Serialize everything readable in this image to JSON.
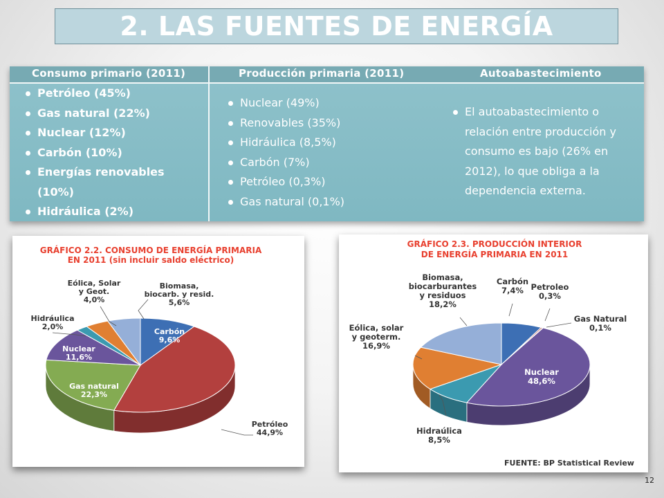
{
  "slide": {
    "title": "2. LAS FUENTES DE ENERGÍA",
    "page_number": "12"
  },
  "table": {
    "headers": [
      "Consumo primario (2011)",
      "Producción primaria (2011)",
      "Autoabastecimiento"
    ],
    "consumo": [
      "Petróleo (45%)",
      "Gas natural (22%)",
      "Nuclear (12%)",
      "Carbón (10%)",
      "Energías renovables (10%)",
      "Hidráulica (2%)"
    ],
    "produccion": [
      "Nuclear (49%)",
      "Renovables (35%)",
      "Hidráulica (8,5%)",
      "Carbón (7%)",
      "Petróleo (0,3%)",
      "Gas natural (0,1%)"
    ],
    "autoabastecimiento": "El autoabastecimiento o relación entre producción y consumo es bajo (26% en 2012), lo que obliga a la dependencia externa."
  },
  "colors": {
    "title_text": "#e8402f",
    "carbon": "#3d6fb4",
    "petroleo": "#b3403e",
    "gas": "#84ab52",
    "nuclear": "#6a559c",
    "hidraulica": "#3b9ab0",
    "eolica": "#e07f32",
    "biomasa": "#95afd8",
    "gasnatural2": "#8a8a8a"
  },
  "chart_data": [
    {
      "type": "pie",
      "title": "GRÁFICO 2.2. CONSUMO DE ENERGÍA PRIMARIA EN 2011 (sin incluir saldo eléctrico)",
      "title_lines": [
        "GRÁFICO 2.2. CONSUMO DE ENERGÍA PRIMARIA",
        "EN 2011 (sin incluir saldo eléctrico)"
      ],
      "slices": [
        {
          "label": "Carbón",
          "value_text": "9,6%",
          "value": 9.6,
          "color": "#3d6fb4"
        },
        {
          "label": "Petróleo",
          "value_text": "44,9%",
          "value": 44.9,
          "color": "#b3403e"
        },
        {
          "label": "Gas natural",
          "value_text": "22,3%",
          "value": 22.3,
          "color": "#84ab52"
        },
        {
          "label": "Nuclear",
          "value_text": "11,6%",
          "value": 11.6,
          "color": "#6a559c"
        },
        {
          "label": "Hidráulica",
          "value_text": "2,0%",
          "value": 2.0,
          "color": "#3b9ab0"
        },
        {
          "label": "Eólica, Solar y Geot.",
          "value_text": "4,0%",
          "value": 4.0,
          "color": "#e07f32"
        },
        {
          "label": "Biomasa, biocarb. y resid.",
          "value_text": "5,6%",
          "value": 5.6,
          "color": "#95afd8"
        }
      ]
    },
    {
      "type": "pie",
      "title": "GRÁFICO 2.3. PRODUCCIÓN INTERIOR DE ENERGÍA PRIMARIA EN 2011",
      "title_lines": [
        "GRÁFICO 2.3. PRODUCCIÓN INTERIOR",
        "DE ENERGÍA PRIMARIA EN 2011"
      ],
      "source": "FUENTE: BP Statistical Review",
      "slices": [
        {
          "label": "Carbón",
          "value_text": "7,4%",
          "value": 7.4,
          "color": "#3d6fb4"
        },
        {
          "label": "Petroleo",
          "value_text": "0,3%",
          "value": 0.3,
          "color": "#b3403e"
        },
        {
          "label": "Gas Natural",
          "value_text": "0,1%",
          "value": 0.1,
          "color": "#8a8a8a"
        },
        {
          "label": "Nuclear",
          "value_text": "48,6%",
          "value": 48.6,
          "color": "#6a559c"
        },
        {
          "label": "Hidraúlica",
          "value_text": "8,5%",
          "value": 8.5,
          "color": "#3b9ab0"
        },
        {
          "label": "Eólica, solar y geoterm.",
          "value_text": "16,9%",
          "value": 16.9,
          "color": "#e07f32"
        },
        {
          "label": "Biomasa, biocarburantes y residuos",
          "value_text": "18,2%",
          "value": 18.2,
          "color": "#95afd8"
        }
      ]
    }
  ]
}
